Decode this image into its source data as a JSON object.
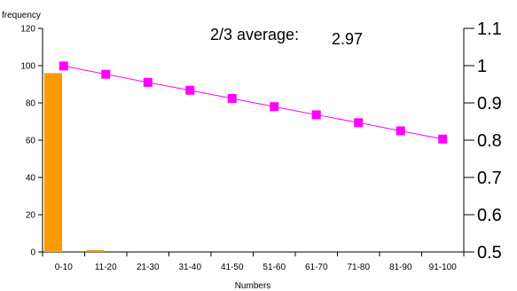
{
  "chart_data": {
    "type": "bar",
    "categories": [
      "0-10",
      "11-20",
      "21-30",
      "31-40",
      "41-50",
      "51-60",
      "61-70",
      "71-80",
      "81-90",
      "91-100"
    ],
    "xlabel": "Numbers",
    "ylabel": "frequency",
    "y_left": {
      "ylim": [
        0,
        120
      ],
      "ticks": [
        0,
        20,
        40,
        60,
        80,
        100,
        120
      ]
    },
    "y_right": {
      "ylim": [
        0.5,
        1.1
      ],
      "ticks": [
        "0.5",
        "0.6",
        "0.7",
        "0.8",
        "0.9",
        "1",
        "1.1"
      ]
    },
    "series": [
      {
        "type": "bar",
        "axis": "left",
        "color": "#FF9900",
        "values": [
          96,
          1,
          0,
          0,
          0,
          0,
          0,
          0,
          0,
          0
        ]
      },
      {
        "type": "line",
        "axis": "right",
        "color": "#FF00FF",
        "marker": "square",
        "values": [
          0.999,
          0.977,
          0.955,
          0.934,
          0.912,
          0.89,
          0.868,
          0.847,
          0.825,
          0.803
        ]
      }
    ],
    "annotation": {
      "label": "2/3 average:",
      "value": "2.97"
    },
    "grid": false,
    "legend": "none"
  }
}
